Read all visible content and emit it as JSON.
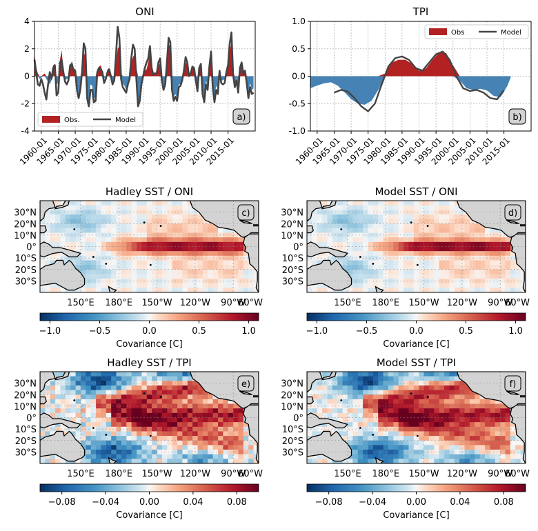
{
  "chart_data": [
    {
      "panel": "a)",
      "type": "area",
      "title": "ONI",
      "ylim": [
        -4,
        4
      ],
      "yticks": [
        -4,
        -2,
        0,
        2,
        4
      ],
      "xticks": [
        "1960-01",
        "1965-01",
        "1970-01",
        "1975-01",
        "1980-01",
        "1985-01",
        "1990-01",
        "1995-01",
        "2000-01",
        "2005-01",
        "2010-01",
        "2015-01"
      ],
      "xrange": [
        1958.0,
        2023.0
      ],
      "grid": true,
      "legend_position": "lower-left",
      "series": [
        {
          "name": "Obs.",
          "color": "#b22222",
          "negative_color": "#4682b4",
          "x": [
            1958.0,
            1958.5,
            1959.0,
            1959.5,
            1960.0,
            1960.5,
            1961.0,
            1961.5,
            1962.0,
            1962.5,
            1963.0,
            1963.5,
            1964.0,
            1964.5,
            1965.0,
            1965.5,
            1966.0,
            1966.5,
            1967.0,
            1967.5,
            1968.0,
            1968.5,
            1969.0,
            1969.5,
            1970.0,
            1970.5,
            1971.0,
            1971.5,
            1972.0,
            1972.5,
            1973.0,
            1973.5,
            1974.0,
            1974.5,
            1975.0,
            1975.5,
            1976.0,
            1976.5,
            1977.0,
            1977.5,
            1978.0,
            1978.5,
            1979.0,
            1979.5,
            1980.0,
            1980.5,
            1981.0,
            1981.5,
            1982.0,
            1982.5,
            1983.0,
            1983.5,
            1984.0,
            1984.5,
            1985.0,
            1985.5,
            1986.0,
            1986.5,
            1987.0,
            1987.5,
            1988.0,
            1988.5,
            1989.0,
            1989.5,
            1990.0,
            1990.5,
            1991.0,
            1991.5,
            1992.0,
            1992.5,
            1993.0,
            1993.5,
            1994.0,
            1994.5,
            1995.0,
            1995.5,
            1996.0,
            1996.5,
            1997.0,
            1997.5,
            1998.0,
            1998.5,
            1999.0,
            1999.5,
            2000.0,
            2000.5,
            2001.0,
            2001.5,
            2002.0,
            2002.5,
            2003.0,
            2003.5,
            2004.0,
            2004.5,
            2005.0,
            2005.5,
            2006.0,
            2006.5,
            2007.0,
            2007.5,
            2008.0,
            2008.5,
            2009.0,
            2009.5,
            2010.0,
            2010.5,
            2011.0,
            2011.5,
            2012.0,
            2012.5,
            2013.0,
            2013.5,
            2014.0,
            2014.5,
            2015.0,
            2015.5,
            2016.0,
            2016.5,
            2017.0,
            2017.5,
            2018.0,
            2018.5,
            2019.0,
            2019.5,
            2020.0,
            2020.5,
            2021.0,
            2021.5,
            2022.0,
            2022.5
          ],
          "values": [
            1.7,
            0.6,
            0.2,
            -0.2,
            -0.1,
            0.1,
            0.2,
            -0.2,
            -0.4,
            -0.6,
            -0.3,
            0.8,
            0.9,
            -0.6,
            -0.5,
            1.2,
            1.9,
            0.4,
            -0.3,
            -0.2,
            -0.2,
            0.7,
            1.1,
            0.6,
            0.5,
            -0.6,
            -1.3,
            -0.8,
            0.4,
            1.6,
            1.6,
            -1.5,
            -2.0,
            -0.6,
            -0.7,
            -1.6,
            -1.5,
            0.5,
            0.7,
            0.8,
            0.4,
            -0.2,
            0.0,
            0.5,
            0.6,
            0.1,
            -0.4,
            -0.2,
            0.8,
            2.0,
            2.2,
            0.2,
            -0.5,
            -0.7,
            -1.0,
            -0.5,
            0.0,
            1.0,
            1.4,
            1.6,
            0.6,
            -1.8,
            -1.7,
            -0.3,
            0.1,
            0.4,
            0.5,
            1.0,
            1.7,
            0.5,
            0.2,
            0.3,
            0.1,
            0.7,
            1.0,
            -0.1,
            -0.8,
            -0.4,
            0.6,
            2.3,
            2.2,
            -0.8,
            -1.5,
            -1.3,
            -1.6,
            -0.6,
            -0.6,
            -0.1,
            0.2,
            1.0,
            0.9,
            0.2,
            0.3,
            0.6,
            0.6,
            -0.1,
            -0.8,
            0.5,
            0.7,
            -1.0,
            -1.6,
            -0.3,
            -0.8,
            0.5,
            1.5,
            -0.6,
            -1.5,
            -0.7,
            -0.9,
            0.3,
            -0.3,
            -0.3,
            -0.2,
            0.3,
            0.5,
            1.8,
            2.5,
            0.3,
            -0.6,
            -0.1,
            -0.9,
            0.5,
            0.8,
            0.3,
            0.5,
            -0.3,
            -1.2,
            -0.5,
            -1.0,
            -0.9
          ]
        },
        {
          "name": "Model",
          "color": "#444444",
          "x": [
            1958.0,
            1958.5,
            1959.0,
            1959.5,
            1960.0,
            1960.5,
            1961.0,
            1961.5,
            1962.0,
            1962.5,
            1963.0,
            1963.5,
            1964.0,
            1964.5,
            1965.0,
            1965.5,
            1966.0,
            1966.5,
            1967.0,
            1967.5,
            1968.0,
            1968.5,
            1969.0,
            1969.5,
            1970.0,
            1970.5,
            1971.0,
            1971.5,
            1972.0,
            1972.5,
            1973.0,
            1973.5,
            1974.0,
            1974.5,
            1975.0,
            1975.5,
            1976.0,
            1976.5,
            1977.0,
            1977.5,
            1978.0,
            1978.5,
            1979.0,
            1979.5,
            1980.0,
            1980.5,
            1981.0,
            1981.5,
            1982.0,
            1982.5,
            1983.0,
            1983.5,
            1984.0,
            1984.5,
            1985.0,
            1985.5,
            1986.0,
            1986.5,
            1987.0,
            1987.5,
            1988.0,
            1988.5,
            1989.0,
            1989.5,
            1990.0,
            1990.5,
            1991.0,
            1991.5,
            1992.0,
            1992.5,
            1993.0,
            1993.5,
            1994.0,
            1994.5,
            1995.0,
            1995.5,
            1996.0,
            1996.5,
            1997.0,
            1997.5,
            1998.0,
            1998.5,
            1999.0,
            1999.5,
            2000.0,
            2000.5,
            2001.0,
            2001.5,
            2002.0,
            2002.5,
            2003.0,
            2003.5,
            2004.0,
            2004.5,
            2005.0,
            2005.5,
            2006.0,
            2006.5,
            2007.0,
            2007.5,
            2008.0,
            2008.5,
            2009.0,
            2009.5,
            2010.0,
            2010.5,
            2011.0,
            2011.5,
            2012.0,
            2012.5,
            2013.0,
            2013.5,
            2014.0,
            2014.5,
            2015.0,
            2015.5,
            2016.0,
            2016.5,
            2017.0,
            2017.5,
            2018.0,
            2018.5,
            2019.0,
            2019.5,
            2020.0,
            2020.5,
            2021.0,
            2021.5,
            2022.0,
            2022.5
          ],
          "values": [
            1.2,
            0.3,
            -0.6,
            -0.7,
            -0.2,
            -0.6,
            -1.2,
            -1.7,
            -0.6,
            0.3,
            -0.2,
            0.6,
            0.8,
            -1.4,
            -1.2,
            1.0,
            1.2,
            0.3,
            -0.4,
            -0.6,
            -0.3,
            0.8,
            0.9,
            0.4,
            0.4,
            -1.0,
            -1.6,
            -1.0,
            0.3,
            2.4,
            2.0,
            -1.6,
            -2.2,
            -1.0,
            -1.0,
            -1.9,
            -1.8,
            0.3,
            0.6,
            0.5,
            0.3,
            -0.5,
            -0.2,
            0.3,
            0.5,
            0.0,
            -0.6,
            -0.3,
            1.5,
            3.6,
            2.8,
            -0.2,
            -0.8,
            -1.0,
            -1.2,
            -0.6,
            -0.2,
            1.3,
            2.3,
            2.0,
            -0.2,
            -2.2,
            -1.8,
            -0.6,
            0.0,
            0.6,
            1.0,
            1.3,
            2.2,
            0.6,
            0.1,
            0.2,
            0.2,
            1.0,
            1.3,
            -0.3,
            -1.0,
            -0.6,
            1.0,
            2.8,
            2.5,
            -1.0,
            -1.8,
            -1.5,
            -1.8,
            -0.8,
            -0.7,
            -0.3,
            0.4,
            1.4,
            1.0,
            0.0,
            0.2,
            0.7,
            0.6,
            -0.3,
            -1.1,
            0.6,
            0.9,
            -1.3,
            -1.9,
            -0.6,
            -1.0,
            0.7,
            1.8,
            -0.8,
            -1.9,
            -1.0,
            -1.3,
            0.4,
            -0.5,
            -0.6,
            -0.5,
            0.3,
            0.8,
            2.4,
            3.2,
            0.1,
            -0.8,
            -0.3,
            -1.2,
            0.6,
            1.0,
            0.2,
            0.4,
            -0.5,
            -1.6,
            -0.8,
            -1.3,
            -1.2
          ]
        }
      ]
    },
    {
      "panel": "b)",
      "type": "area",
      "title": "TPI",
      "ylim": [
        -1.0,
        1.0
      ],
      "yticks": [
        -1.0,
        -0.5,
        0.0,
        0.5,
        1.0
      ],
      "xticks": [
        "1960-01",
        "1965-01",
        "1970-01",
        "1975-01",
        "1980-01",
        "1985-01",
        "1990-01",
        "1995-01",
        "2000-01",
        "2005-01",
        "2010-01",
        "2015-01"
      ],
      "xrange": [
        1958.0,
        2023.0
      ],
      "grid": true,
      "legend_position": "upper-right",
      "series": [
        {
          "name": "Obs",
          "color": "#b22222",
          "negative_color": "#4682b4",
          "x": [
            1958,
            1960,
            1962,
            1964,
            1966,
            1968,
            1970,
            1972,
            1974,
            1976,
            1978,
            1980,
            1982,
            1984,
            1986,
            1988,
            1990,
            1992,
            1994,
            1996,
            1998,
            2000,
            2002,
            2004,
            2006,
            2008,
            2010,
            2012,
            2014,
            2016,
            2017
          ],
          "values": [
            -0.22,
            -0.17,
            -0.13,
            -0.11,
            -0.17,
            -0.29,
            -0.42,
            -0.5,
            -0.52,
            -0.45,
            -0.25,
            0.05,
            0.25,
            0.3,
            0.3,
            0.22,
            0.1,
            0.14,
            0.3,
            0.44,
            0.42,
            0.2,
            -0.08,
            -0.22,
            -0.25,
            -0.23,
            -0.26,
            -0.36,
            -0.38,
            -0.18,
            -0.02
          ]
        },
        {
          "name": "Model",
          "color": "#444444",
          "x": [
            1965,
            1967,
            1969,
            1971,
            1973,
            1975,
            1977,
            1979,
            1981,
            1983,
            1985,
            1987,
            1989,
            1991,
            1993,
            1995,
            1997,
            1999,
            2001,
            2003,
            2005,
            2007,
            2009,
            2011,
            2013,
            2015
          ],
          "values": [
            -0.3,
            -0.25,
            -0.28,
            -0.4,
            -0.55,
            -0.64,
            -0.5,
            -0.15,
            0.18,
            0.33,
            0.36,
            0.3,
            0.15,
            0.1,
            0.25,
            0.4,
            0.45,
            0.3,
            0.0,
            -0.22,
            -0.27,
            -0.25,
            -0.3,
            -0.4,
            -0.42,
            -0.26
          ]
        }
      ]
    },
    {
      "panel": "c)",
      "type": "heatmap",
      "title": "Hadley SST / ONI",
      "colorbar_label": "Covariance [C]",
      "colorbar_range": [
        -1.1,
        1.1
      ],
      "colorbar_ticks": [
        "−1.0",
        "−0.5",
        "0.0",
        "0.5",
        "1.0"
      ],
      "colormap": "RdBu_r",
      "lon_ticks": [
        "150°E",
        "180°E",
        "150°W",
        "120°W",
        "90°W",
        "60°W"
      ],
      "lat_ticks": [
        "30°N",
        "20°N",
        "10°N",
        "0°",
        "10°S",
        "20°S",
        "30°S"
      ],
      "pattern": "oni"
    },
    {
      "panel": "d)",
      "type": "heatmap",
      "title": "Model SST / ONI",
      "colorbar_label": "Covariance [C]",
      "colorbar_range": [
        -1.1,
        1.1
      ],
      "colorbar_ticks": [
        "−1.0",
        "−0.5",
        "0.0",
        "0.5",
        "1.0"
      ],
      "colormap": "RdBu_r",
      "lon_ticks": [
        "150°E",
        "180°E",
        "150°W",
        "120°W",
        "90°W",
        "60°W"
      ],
      "lat_ticks": [
        "30°N",
        "20°N",
        "10°N",
        "0°",
        "10°S",
        "20°S",
        "30°S"
      ],
      "pattern": "oni_model"
    },
    {
      "panel": "e)",
      "type": "heatmap",
      "title": "Hadley SST / TPI",
      "colorbar_label": "Covariance [C]",
      "colorbar_range": [
        -0.1,
        0.1
      ],
      "colorbar_ticks": [
        "−0.08",
        "−0.04",
        "0.00",
        "0.04",
        "0.08"
      ],
      "colormap": "RdBu_r",
      "lon_ticks": [
        "150°E",
        "180°E",
        "150°W",
        "120°W",
        "90°W",
        "60°W"
      ],
      "lat_ticks": [
        "30°N",
        "20°N",
        "10°N",
        "0°",
        "10°S",
        "20°S",
        "30°S"
      ],
      "pattern": "tpi"
    },
    {
      "panel": "f)",
      "type": "heatmap",
      "title": "Model SST / TPI",
      "colorbar_label": "Covariance [C]",
      "colorbar_range": [
        -0.1,
        0.1
      ],
      "colorbar_ticks": [
        "−0.08",
        "−0.04",
        "0.00",
        "0.04",
        "0.08"
      ],
      "colormap": "RdBu_r",
      "lon_ticks": [
        "150°E",
        "180°E",
        "150°W",
        "120°W",
        "90°W",
        "60°W"
      ],
      "lat_ticks": [
        "30°N",
        "20°N",
        "10°N",
        "0°",
        "10°S",
        "20°S",
        "30°S"
      ],
      "pattern": "tpi_model"
    }
  ]
}
